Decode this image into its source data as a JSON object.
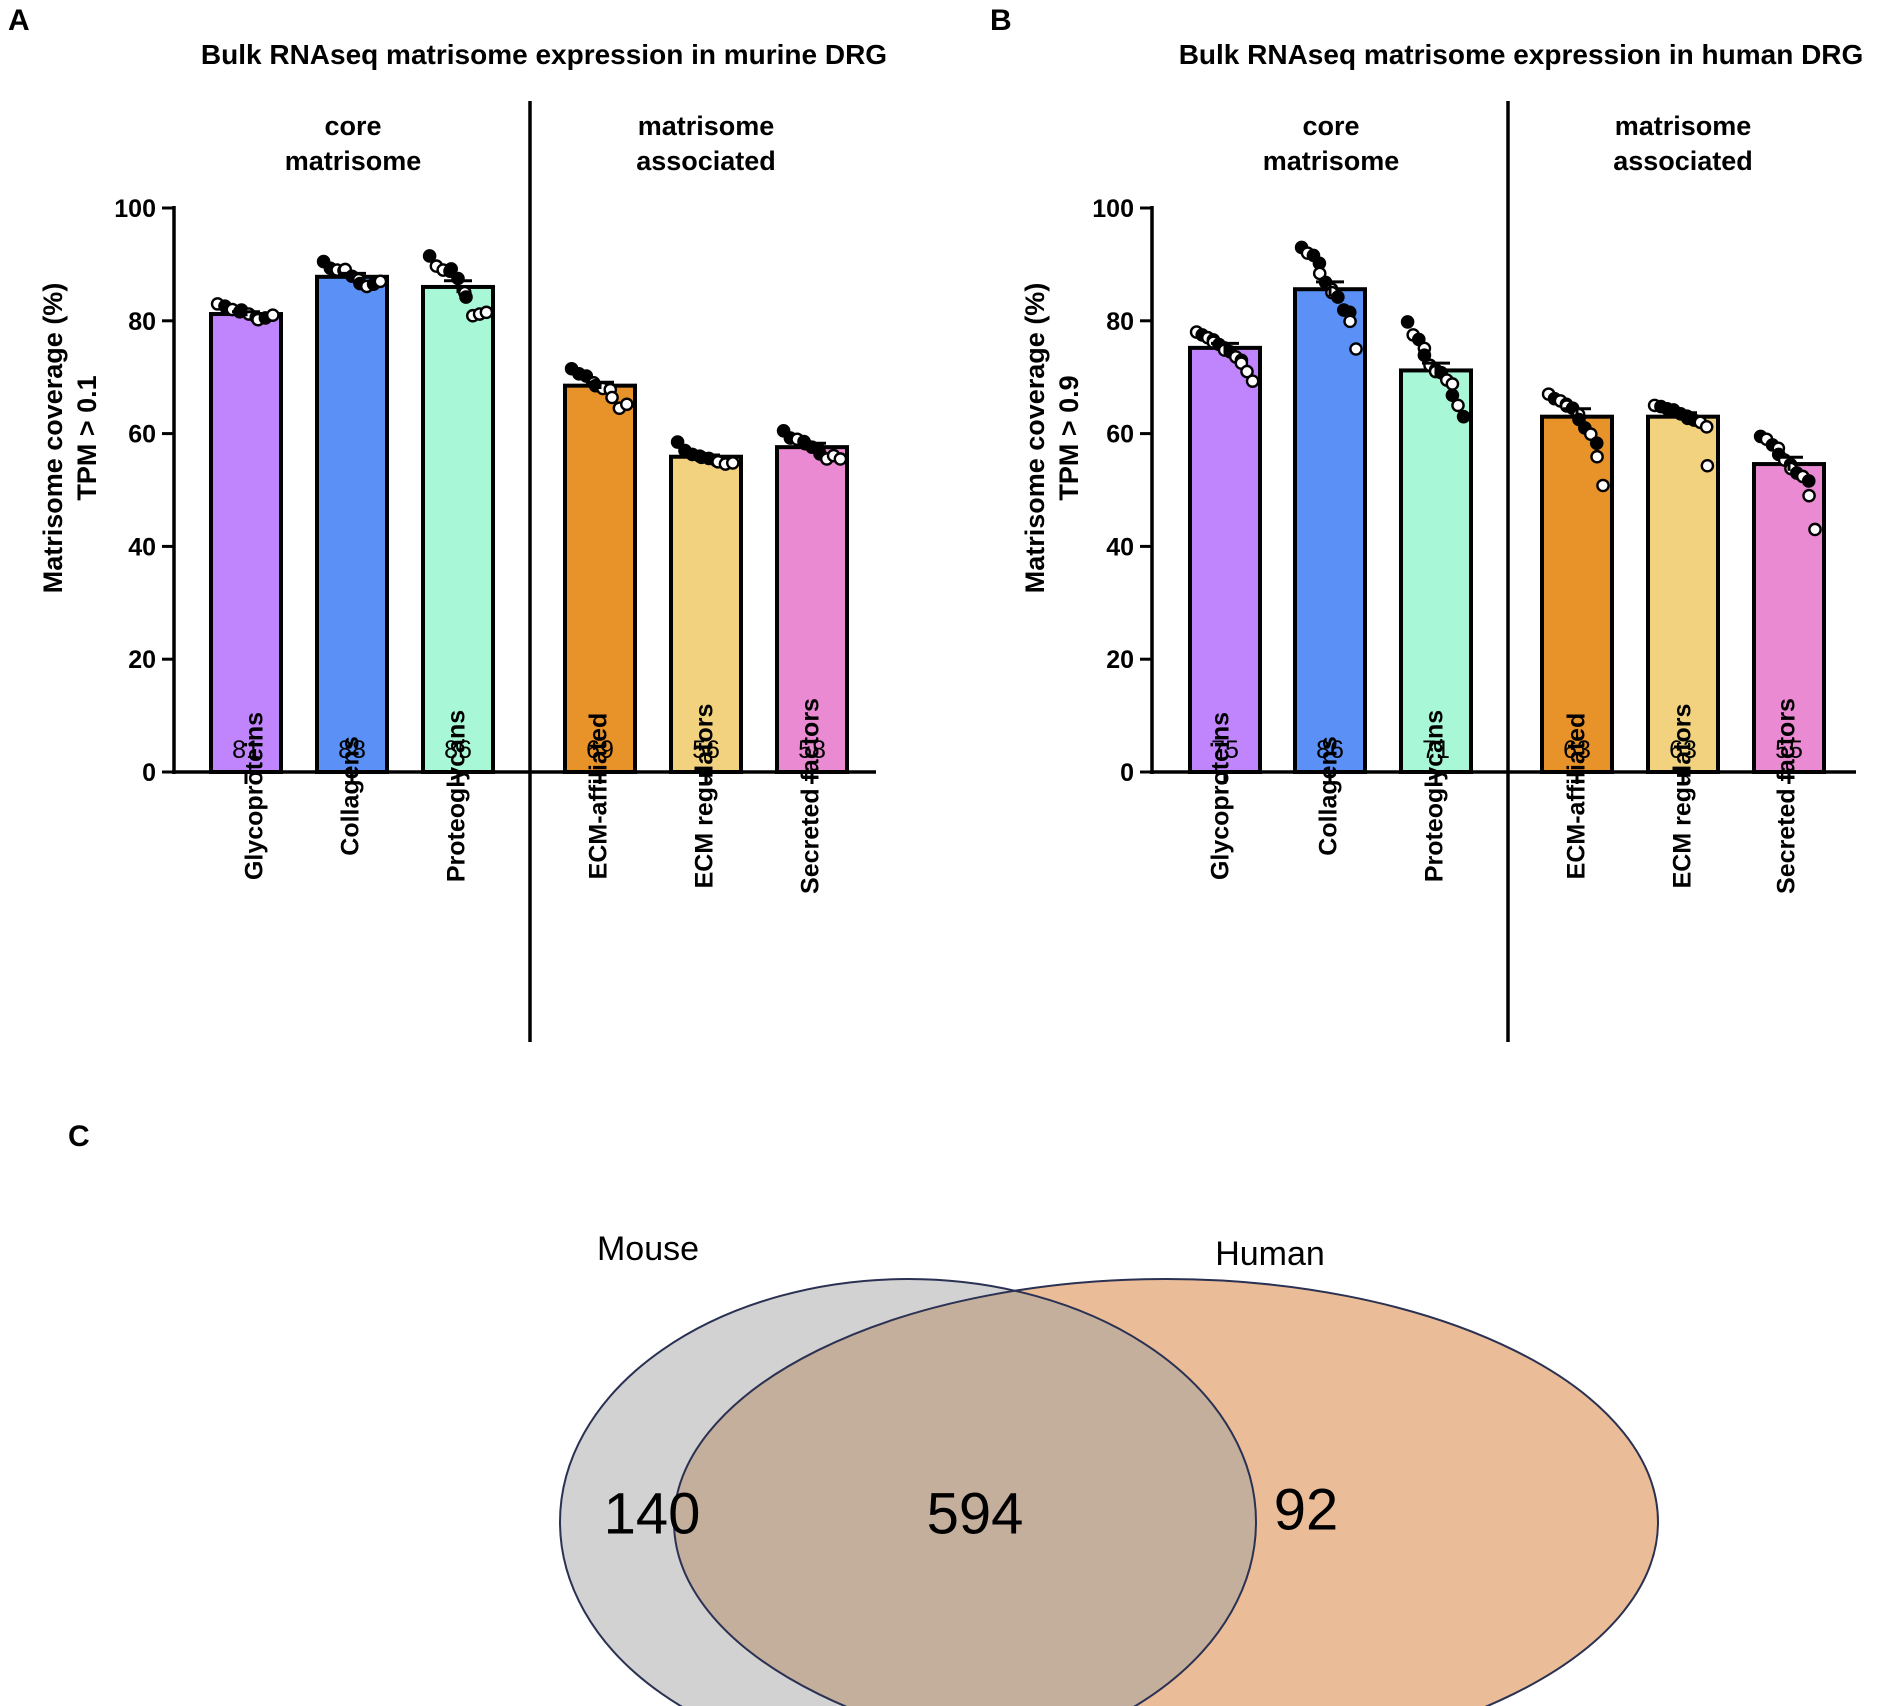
{
  "chart_data": [
    {
      "type": "bar",
      "panel_label": "A",
      "title": "Bulk RNAseq matrisome expression in murine DRG",
      "ylabel_line1": "Matrisome coverage (%)",
      "ylabel_line2": "TPM > 0.1",
      "ylim": [
        0,
        100
      ],
      "yticks": [
        0,
        20,
        40,
        60,
        80,
        100
      ],
      "groups": [
        {
          "label_line1": "core",
          "label_line2": "matrisome"
        },
        {
          "label_line1": "matrisome",
          "label_line2": "associated"
        }
      ],
      "categories": [
        "Glycoproteins",
        "Collagens",
        "Proteoglycans",
        "ECM-affiliated",
        "ECM regulators",
        "Secreted factors"
      ],
      "values": [
        81,
        88,
        86,
        69,
        56,
        58
      ],
      "bar_heights": [
        81.2,
        87.8,
        86.0,
        68.5,
        55.9,
        57.6
      ],
      "errors": [
        0.4,
        0.6,
        1.1,
        0.6,
        0.3,
        0.7
      ],
      "colors": [
        "#c084fc",
        "#5b91f6",
        "#a8f7d6",
        "#e8922a",
        "#f2d27e",
        "#e98ad2"
      ],
      "points": [
        [
          {
            "v": 83.0,
            "o": 1
          },
          {
            "v": 82.6,
            "o": 0
          },
          {
            "v": 82.0,
            "o": 1
          },
          {
            "v": 81.6,
            "o": 0
          },
          {
            "v": 81.9,
            "o": 0
          },
          {
            "v": 81.2,
            "o": 1
          },
          {
            "v": 80.6,
            "o": 0
          },
          {
            "v": 80.2,
            "o": 1
          },
          {
            "v": 80.5,
            "o": 0
          },
          {
            "v": 81.0,
            "o": 1
          }
        ],
        [
          {
            "v": 90.5,
            "o": 0
          },
          {
            "v": 89.3,
            "o": 0
          },
          {
            "v": 89.0,
            "o": 1
          },
          {
            "v": 88.9,
            "o": 1
          },
          {
            "v": 89.1,
            "o": 1
          },
          {
            "v": 87.9,
            "o": 0
          },
          {
            "v": 87.3,
            "o": 1
          },
          {
            "v": 86.6,
            "o": 0
          },
          {
            "v": 86.1,
            "o": 1
          },
          {
            "v": 86.5,
            "o": 0
          },
          {
            "v": 87.0,
            "o": 1
          }
        ],
        [
          {
            "v": 91.5,
            "o": 0
          },
          {
            "v": 89.7,
            "o": 1
          },
          {
            "v": 89.0,
            "o": 1
          },
          {
            "v": 88.8,
            "o": 0
          },
          {
            "v": 89.2,
            "o": 0
          },
          {
            "v": 87.5,
            "o": 0
          },
          {
            "v": 85.0,
            "o": 1
          },
          {
            "v": 84.2,
            "o": 0
          },
          {
            "v": 80.9,
            "o": 1
          },
          {
            "v": 81.2,
            "o": 1
          },
          {
            "v": 81.5,
            "o": 1
          }
        ],
        [
          {
            "v": 71.5,
            "o": 0
          },
          {
            "v": 70.6,
            "o": 0
          },
          {
            "v": 70.2,
            "o": 0
          },
          {
            "v": 69.0,
            "o": 1
          },
          {
            "v": 68.5,
            "o": 0
          },
          {
            "v": 68.0,
            "o": 1
          },
          {
            "v": 67.8,
            "o": 1
          },
          {
            "v": 66.4,
            "o": 1
          },
          {
            "v": 64.5,
            "o": 1
          },
          {
            "v": 65.2,
            "o": 1
          }
        ],
        [
          {
            "v": 58.5,
            "o": 0
          },
          {
            "v": 57.0,
            "o": 0
          },
          {
            "v": 56.3,
            "o": 0
          },
          {
            "v": 56.0,
            "o": 0
          },
          {
            "v": 55.8,
            "o": 0
          },
          {
            "v": 55.6,
            "o": 0
          },
          {
            "v": 55.2,
            "o": 0
          },
          {
            "v": 55.0,
            "o": 1
          },
          {
            "v": 54.6,
            "o": 1
          },
          {
            "v": 54.8,
            "o": 1
          }
        ],
        [
          {
            "v": 60.5,
            "o": 0
          },
          {
            "v": 59.2,
            "o": 0
          },
          {
            "v": 59.0,
            "o": 1
          },
          {
            "v": 58.6,
            "o": 0
          },
          {
            "v": 58.2,
            "o": 0
          },
          {
            "v": 57.6,
            "o": 0
          },
          {
            "v": 57.2,
            "o": 0
          },
          {
            "v": 56.4,
            "o": 0
          },
          {
            "v": 55.5,
            "o": 1
          },
          {
            "v": 56.1,
            "o": 1
          },
          {
            "v": 55.5,
            "o": 1
          }
        ]
      ]
    },
    {
      "type": "bar",
      "panel_label": "B",
      "title": "Bulk RNAseq matrisome expression in human DRG",
      "ylabel_line1": "Matrisome coverage (%)",
      "ylabel_line2": "TPM > 0.9",
      "ylim": [
        0,
        100
      ],
      "yticks": [
        0,
        20,
        40,
        60,
        80,
        100
      ],
      "groups": [
        {
          "label_line1": "core",
          "label_line2": "matrisome"
        },
        {
          "label_line1": "matrisome",
          "label_line2": "associated"
        }
      ],
      "categories": [
        "Glycoproteins",
        "Collagens",
        "Proteoglycans",
        "ECM-affiliated",
        "ECM regulators",
        "Secreted factors"
      ],
      "values": [
        75,
        86,
        71,
        63,
        63,
        55
      ],
      "bar_heights": [
        75.2,
        85.6,
        71.2,
        63.0,
        63.0,
        54.6
      ],
      "errors": [
        0.8,
        1.3,
        1.3,
        1.4,
        0.7,
        1.2
      ],
      "colors": [
        "#c084fc",
        "#5b91f6",
        "#a8f7d6",
        "#e8922a",
        "#f2d27e",
        "#e98ad2"
      ],
      "points": [
        [
          {
            "v": 78.0,
            "o": 1
          },
          {
            "v": 77.5,
            "o": 0
          },
          {
            "v": 77.0,
            "o": 1
          },
          {
            "v": 76.6,
            "o": 0
          },
          {
            "v": 76.2,
            "o": 1
          },
          {
            "v": 75.8,
            "o": 0
          },
          {
            "v": 75.2,
            "o": 0
          },
          {
            "v": 74.8,
            "o": 1
          },
          {
            "v": 74.5,
            "o": 0
          },
          {
            "v": 73.6,
            "o": 1
          },
          {
            "v": 73.0,
            "o": 0
          },
          {
            "v": 72.5,
            "o": 1
          },
          {
            "v": 71.0,
            "o": 1
          },
          {
            "v": 69.3,
            "o": 1
          }
        ],
        [
          {
            "v": 93.0,
            "o": 0
          },
          {
            "v": 92.0,
            "o": 1
          },
          {
            "v": 91.6,
            "o": 0
          },
          {
            "v": 90.2,
            "o": 0
          },
          {
            "v": 88.4,
            "o": 1
          },
          {
            "v": 86.8,
            "o": 0
          },
          {
            "v": 85.6,
            "o": 1
          },
          {
            "v": 85.0,
            "o": 1
          },
          {
            "v": 84.2,
            "o": 0
          },
          {
            "v": 81.9,
            "o": 0
          },
          {
            "v": 81.5,
            "o": 0
          },
          {
            "v": 79.9,
            "o": 1
          },
          {
            "v": 75.0,
            "o": 1
          }
        ],
        [
          {
            "v": 79.8,
            "o": 0
          },
          {
            "v": 77.5,
            "o": 1
          },
          {
            "v": 76.7,
            "o": 0
          },
          {
            "v": 75.1,
            "o": 1
          },
          {
            "v": 73.9,
            "o": 0
          },
          {
            "v": 72.1,
            "o": 1
          },
          {
            "v": 71.3,
            "o": 0
          },
          {
            "v": 71.0,
            "o": 1
          },
          {
            "v": 70.8,
            "o": 0
          },
          {
            "v": 69.5,
            "o": 1
          },
          {
            "v": 68.8,
            "o": 1
          },
          {
            "v": 66.8,
            "o": 0
          },
          {
            "v": 65.0,
            "o": 1
          },
          {
            "v": 63.0,
            "o": 0
          }
        ],
        [
          {
            "v": 67.0,
            "o": 1
          },
          {
            "v": 66.2,
            "o": 0
          },
          {
            "v": 65.8,
            "o": 1
          },
          {
            "v": 65.2,
            "o": 0
          },
          {
            "v": 64.9,
            "o": 1
          },
          {
            "v": 64.5,
            "o": 0
          },
          {
            "v": 63.4,
            "o": 1
          },
          {
            "v": 62.5,
            "o": 0
          },
          {
            "v": 61.0,
            "o": 0
          },
          {
            "v": 59.9,
            "o": 1
          },
          {
            "v": 58.3,
            "o": 0
          },
          {
            "v": 55.9,
            "o": 1
          },
          {
            "v": 50.8,
            "o": 1
          }
        ],
        [
          {
            "v": 65.0,
            "o": 1
          },
          {
            "v": 64.8,
            "o": 0
          },
          {
            "v": 64.4,
            "o": 0
          },
          {
            "v": 64.2,
            "o": 1
          },
          {
            "v": 63.9,
            "o": 0
          },
          {
            "v": 63.5,
            "o": 0
          },
          {
            "v": 63.1,
            "o": 1
          },
          {
            "v": 62.7,
            "o": 0
          },
          {
            "v": 62.4,
            "o": 0
          },
          {
            "v": 62.0,
            "o": 1
          },
          {
            "v": 61.2,
            "o": 1
          },
          {
            "v": 54.3,
            "o": 1
          }
        ],
        [
          {
            "v": 59.5,
            "o": 0
          },
          {
            "v": 59.0,
            "o": 1
          },
          {
            "v": 58.0,
            "o": 0
          },
          {
            "v": 57.4,
            "o": 1
          },
          {
            "v": 56.3,
            "o": 0
          },
          {
            "v": 55.3,
            "o": 1
          },
          {
            "v": 54.5,
            "o": 0
          },
          {
            "v": 53.8,
            "o": 1
          },
          {
            "v": 53.0,
            "o": 0
          },
          {
            "v": 52.4,
            "o": 1
          },
          {
            "v": 51.6,
            "o": 0
          },
          {
            "v": 49.0,
            "o": 1
          },
          {
            "v": 43.0,
            "o": 1
          }
        ]
      ]
    }
  ],
  "venn": {
    "panel_label": "C",
    "set_a": {
      "name": "Mouse",
      "only_count": "140",
      "color": "#d2d2d2"
    },
    "set_b": {
      "name": "Human",
      "only_count": "92",
      "color": "#eabd98"
    },
    "overlap_count": "594",
    "overlap_color": "#c4ae9c",
    "outline_color": "#2a3152"
  }
}
